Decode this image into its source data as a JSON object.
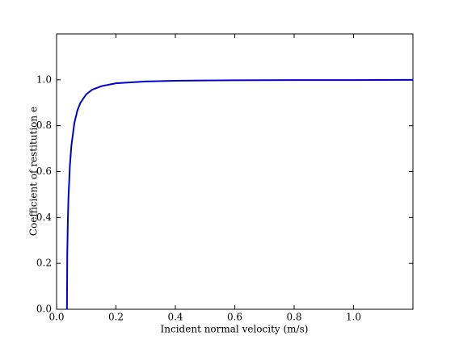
{
  "chart_data": {
    "type": "line",
    "xlabel": "Incident normal velocity (m/s)",
    "ylabel": "Coefficient of restitution e",
    "x": [
      0.035,
      0.036,
      0.038,
      0.04,
      0.045,
      0.05,
      0.06,
      0.07,
      0.08,
      0.1,
      0.12,
      0.15,
      0.2,
      0.3,
      0.4,
      0.6,
      0.8,
      1.0,
      1.2
    ],
    "series": [
      {
        "color": "#0000cc",
        "values": [
          0,
          0.234,
          0.389,
          0.484,
          0.629,
          0.714,
          0.812,
          0.866,
          0.899,
          0.937,
          0.957,
          0.972,
          0.985,
          0.993,
          0.996,
          0.998,
          0.999,
          0.999,
          1.0
        ]
      }
    ],
    "xlim": [
      0,
      1.2
    ],
    "ylim": [
      0,
      1.2
    ],
    "xticks": [
      {
        "value": 0,
        "label": "0.0"
      },
      0.2,
      0.4,
      0.6,
      0.8,
      {
        "value": 1,
        "label": "1.0"
      }
    ],
    "yticks": [
      {
        "value": 0,
        "label": "0.0"
      },
      0.2,
      0.4,
      0.6,
      0.8,
      {
        "value": 1,
        "label": "1.0"
      }
    ]
  }
}
